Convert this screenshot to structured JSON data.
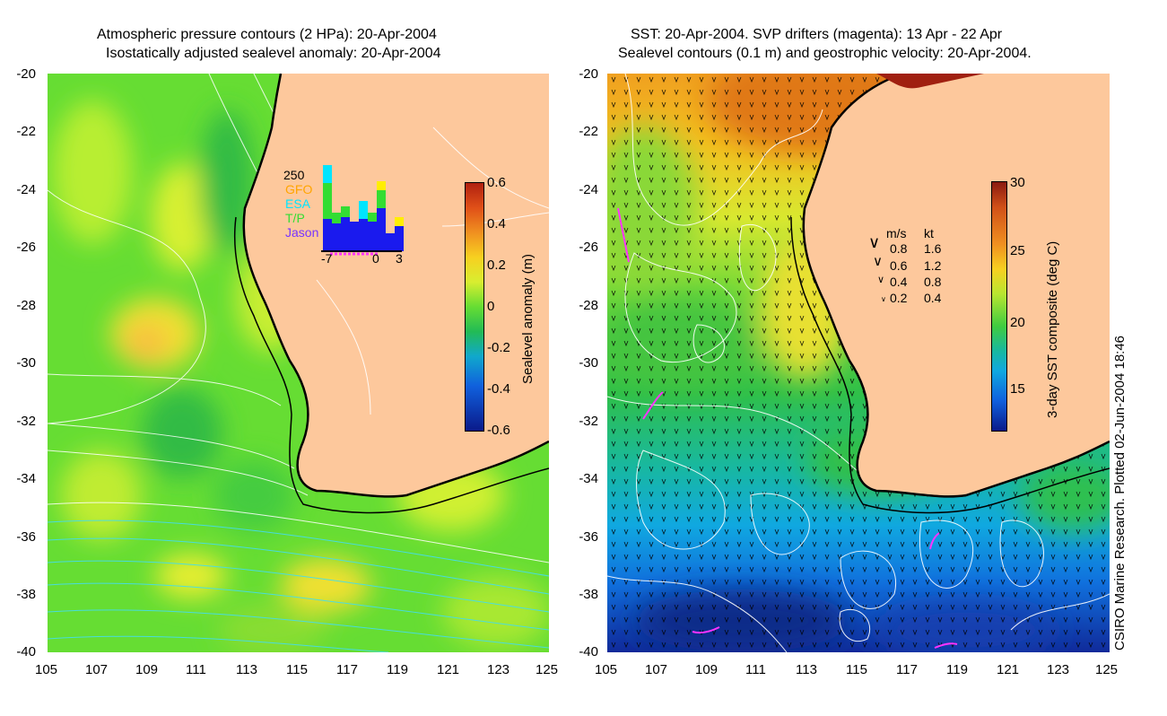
{
  "left_panel": {
    "title_line1": "Atmospheric pressure contours (2 HPa): 20-Apr-2004",
    "title_line2": "Isostatically adjusted sealevel anomaly: 20-Apr-2004",
    "y_ticks": [
      "-20",
      "-22",
      "-24",
      "-26",
      "-28",
      "-30",
      "-32",
      "-34",
      "-36",
      "-38",
      "-40"
    ],
    "x_ticks": [
      "105",
      "107",
      "109",
      "111",
      "113",
      "115",
      "117",
      "119",
      "121",
      "123",
      "125"
    ],
    "colorbar": {
      "label": "Sealevel anomaly (m)",
      "ticks": [
        "0.6",
        "0.4",
        "0.2",
        "0",
        "-0.2",
        "-0.4",
        "-0.6"
      ]
    },
    "inset": {
      "count_label": "250",
      "series": [
        "GFO",
        "ESA",
        "T/P",
        "Jason"
      ],
      "series_colors": [
        "#ffa500",
        "#00e5ff",
        "#33dd33",
        "#7733ff"
      ],
      "x_ticks": [
        "-7",
        "0",
        "3"
      ]
    }
  },
  "right_panel": {
    "title_line1": "SST: 20-Apr-2004. SVP drifters (magenta): 13 Apr - 22 Apr",
    "title_line2": "Sealevel contours (0.1 m) and geostrophic velocity: 20-Apr-2004.",
    "y_ticks": [
      "-20",
      "-22",
      "-24",
      "-26",
      "-28",
      "-30",
      "-32",
      "-34",
      "-36",
      "-38",
      "-40"
    ],
    "x_ticks": [
      "105",
      "107",
      "109",
      "111",
      "113",
      "115",
      "117",
      "119",
      "121",
      "123",
      "125"
    ],
    "colorbar": {
      "label": "3-day SST composite (deg C)",
      "ticks": [
        "30",
        "25",
        "20",
        "15"
      ]
    },
    "velocity_legend": {
      "header_ms": "m/s",
      "header_kt": "kt",
      "rows": [
        {
          "ms": "0.8",
          "kt": "1.6"
        },
        {
          "ms": "0.6",
          "kt": "1.2"
        },
        {
          "ms": "0.4",
          "kt": "0.8"
        },
        {
          "ms": "0.2",
          "kt": "0.4"
        }
      ]
    }
  },
  "footer": "CSIRO Marine Research. Plotted 02-Jun-2004 18:46",
  "colors": {
    "land": "#fdc89c",
    "coast": "#000000"
  }
}
